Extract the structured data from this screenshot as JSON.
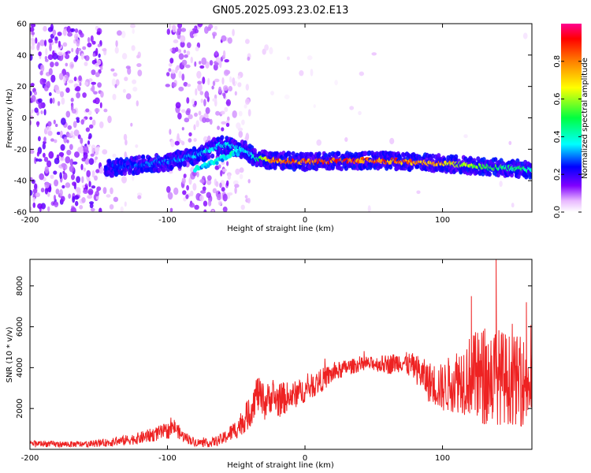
{
  "figure": {
    "title": "GN05.2025.093.23.02.E13"
  },
  "colors": {
    "line": "#ee2222",
    "frame": "#000000",
    "background": "#ffffff"
  },
  "chart_data": [
    {
      "type": "heatmap",
      "name": "spectrogram",
      "xlabel": "Height of straight line (km)",
      "ylabel": "Frequency (Hz)",
      "xlim": [
        -200,
        165
      ],
      "ylim": [
        -60,
        60
      ],
      "xticks": [
        -200,
        -100,
        0,
        100
      ],
      "yticks": [
        -60,
        -40,
        -20,
        0,
        20,
        40,
        60
      ],
      "ridge": {
        "x": [
          -145,
          -120,
          -100,
          -80,
          -60,
          -45,
          -35,
          -25,
          0,
          50,
          100,
          130,
          165
        ],
        "y": [
          -32,
          -30,
          -28,
          -24,
          -17,
          -20,
          -26,
          -27,
          -28,
          -27,
          -29,
          -31,
          -33
        ],
        "amplitude": [
          0.25,
          0.3,
          0.3,
          0.35,
          0.4,
          0.35,
          0.45,
          0.85,
          0.9,
          0.9,
          0.8,
          0.55,
          0.45
        ]
      },
      "colorbar": {
        "label": "Normalized spectral amplitude",
        "ticks": [
          0.0,
          0.2,
          0.4,
          0.6,
          0.8
        ],
        "tick_labels": [
          "0.0",
          "0.2",
          "0.4",
          "0.6",
          "0.8"
        ],
        "range": [
          0,
          1
        ]
      }
    },
    {
      "type": "line",
      "name": "snr",
      "xlabel": "Height of straight line (km)",
      "ylabel": "SNR (10 * v/v)",
      "xlim": [
        -200,
        165
      ],
      "ylim": [
        0,
        9300
      ],
      "xticks": [
        -200,
        -100,
        0,
        100
      ],
      "yticks": [
        2000,
        4000,
        6000,
        8000
      ],
      "series": [
        {
          "name": "SNR",
          "x": [
            -200,
            -180,
            -160,
            -140,
            -120,
            -100,
            -95,
            -90,
            -80,
            -70,
            -60,
            -50,
            -40,
            -35,
            -30,
            -25,
            -20,
            -10,
            0,
            10,
            20,
            30,
            40,
            50,
            60,
            70,
            80,
            90,
            100,
            110,
            120,
            130,
            140,
            150,
            160,
            165
          ],
          "y": [
            300,
            250,
            250,
            350,
            550,
            900,
            1100,
            700,
            350,
            300,
            500,
            1000,
            1800,
            2800,
            2200,
            2600,
            2400,
            2600,
            2900,
            3300,
            3700,
            4000,
            4150,
            4200,
            4150,
            4300,
            4000,
            3300,
            3000,
            3400,
            3600,
            3500,
            3600,
            3400,
            3300,
            3200
          ],
          "spread": [
            150,
            150,
            150,
            200,
            300,
            400,
            400,
            300,
            200,
            200,
            300,
            500,
            800,
            900,
            900,
            800,
            900,
            700,
            600,
            600,
            500,
            400,
            350,
            350,
            500,
            500,
            700,
            1000,
            1200,
            1600,
            2000,
            2500,
            2400,
            2200,
            2200,
            2000
          ]
        }
      ],
      "peaks": {
        "x": [
          121,
          139,
          161
        ],
        "y": [
          7500,
          9300,
          7200
        ]
      }
    }
  ]
}
